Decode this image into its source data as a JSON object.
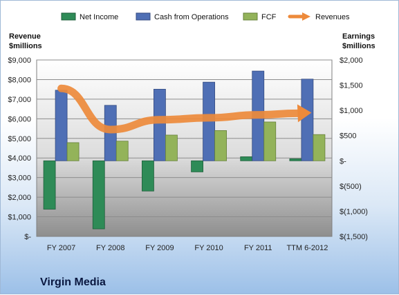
{
  "chart_data": {
    "type": "bar",
    "title": "",
    "company": "Virgin Media",
    "categories": [
      "FY 2007",
      "FY 2008",
      "FY 2009",
      "FY 2010",
      "FY 2011",
      "TTM 6-2012"
    ],
    "left_axis": {
      "label_line1": "Revenue",
      "label_line2": "$millions",
      "range": [
        0,
        9000
      ],
      "ticks": [
        0,
        1000,
        2000,
        3000,
        4000,
        5000,
        6000,
        7000,
        8000,
        9000
      ],
      "tick_labels": [
        "$-",
        "$1,000",
        "$2,000",
        "$3,000",
        "$4,000",
        "$5,000",
        "$6,000",
        "$7,000",
        "$8,000",
        "$9,000"
      ]
    },
    "right_axis": {
      "label_line1": "Earnings",
      "label_line2": "$millions",
      "range": [
        -1500,
        2000
      ],
      "ticks": [
        -1500,
        -1000,
        -500,
        0,
        500,
        1000,
        1500,
        2000
      ],
      "tick_labels": [
        "$(1,500)",
        "$(1,000)",
        "$(500)",
        "$-",
        "$500",
        "$1,000",
        "$1,500",
        "$2,000"
      ]
    },
    "series": [
      {
        "name": "Net Income",
        "axis": "right",
        "kind": "bar",
        "color": "#2e8b57",
        "values": [
          -960,
          -1350,
          -600,
          -220,
          80,
          40
        ]
      },
      {
        "name": "Cash from Operations",
        "axis": "right",
        "kind": "bar",
        "color": "#4f6fb5",
        "values": [
          1400,
          1100,
          1420,
          1560,
          1780,
          1620
        ]
      },
      {
        "name": "FCF",
        "axis": "right",
        "kind": "bar",
        "color": "#93b35a",
        "values": [
          360,
          390,
          510,
          600,
          770,
          520
        ]
      },
      {
        "name": "Revenues",
        "axis": "left",
        "kind": "line",
        "color": "#ed8a3b",
        "values": [
          7550,
          5450,
          5950,
          6050,
          6200,
          6300
        ]
      }
    ],
    "legend_position": "top",
    "grid": true
  }
}
